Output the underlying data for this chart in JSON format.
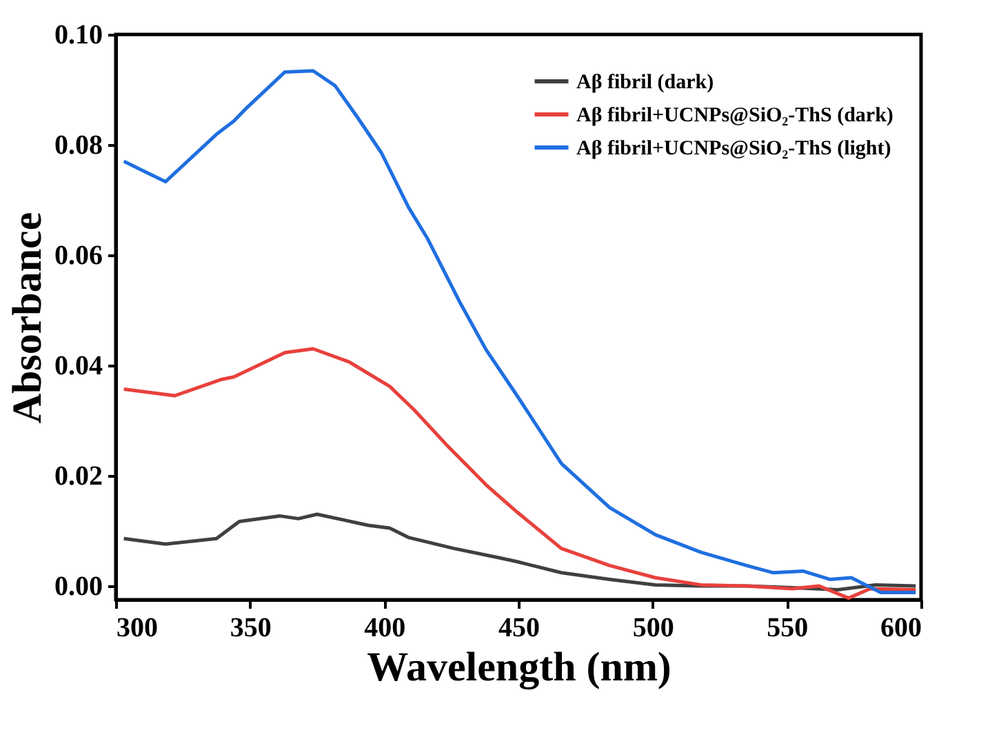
{
  "chart_data": {
    "type": "line",
    "xlabel": "Wavelength (nm)",
    "ylabel": "Absorbance",
    "xlim": [
      300,
      600
    ],
    "ylim": [
      -0.0025,
      0.1
    ],
    "xticks": [
      300,
      350,
      400,
      450,
      500,
      550,
      600
    ],
    "yticks": [
      {
        "value": 0,
        "label": "0.00"
      },
      {
        "value": 0.02,
        "label": "0.02"
      },
      {
        "value": 0.04,
        "label": "0.04"
      },
      {
        "value": 0.06,
        "label": "0.06"
      },
      {
        "value": 0.08,
        "label": "0.08"
      },
      {
        "value": 0.1,
        "label": "0.10"
      }
    ],
    "grid": false,
    "legend": "top right",
    "marker": "none",
    "line_style": "solid",
    "series": [
      {
        "name": "Aβ fibril (dark)",
        "color": "#404040",
        "x": [
          303,
          318.5,
          337.5,
          346,
          361,
          368,
          375,
          394,
          402,
          409,
          426,
          443,
          449.5,
          466,
          484,
          501,
          518,
          535,
          552,
          569,
          583,
          598
        ],
        "values": [
          0.0086,
          0.0076,
          0.0086,
          0.0117,
          0.0127,
          0.0122,
          0.013,
          0.011,
          0.0105,
          0.0088,
          0.0068,
          0.0051,
          0.0044,
          0.0024,
          0.0012,
          0.0002,
          0,
          0,
          -0.0003,
          -0.0007,
          0.0002,
          0
        ]
      },
      {
        "name": "Aβ fibril+UCNPs@SiO₂-ThS (dark)",
        "color": "#e8413c",
        "x": [
          303,
          322,
          339,
          344,
          363,
          373.5,
          387,
          402,
          411,
          423,
          438,
          449.5,
          466,
          484,
          501,
          518,
          535,
          552,
          562,
          573,
          581,
          598
        ],
        "values": [
          0.0357,
          0.0345,
          0.0374,
          0.0379,
          0.0423,
          0.043,
          0.0406,
          0.0362,
          0.032,
          0.0257,
          0.0183,
          0.0134,
          0.0068,
          0.0037,
          0.0015,
          0.0002,
          0,
          -0.0005,
          0,
          -0.0022,
          -0.0005,
          -0.0007
        ]
      },
      {
        "name": "Aβ fibril+UCNPs@SiO₂-ThS (light)",
        "color": "#1f6fe0",
        "x": [
          303,
          318.5,
          337.5,
          344,
          349,
          363,
          373.5,
          381.7,
          390,
          399,
          409,
          416,
          428,
          438,
          449.5,
          466,
          484,
          501,
          518,
          535,
          545,
          556,
          566,
          574,
          585,
          598
        ],
        "values": [
          0.077,
          0.0733,
          0.0819,
          0.0843,
          0.0868,
          0.0932,
          0.0934,
          0.0907,
          0.085,
          0.0785,
          0.0687,
          0.0631,
          0.0516,
          0.0428,
          0.0345,
          0.0222,
          0.0142,
          0.0093,
          0.0061,
          0.0037,
          0.0024,
          0.0027,
          0.0012,
          0.0015,
          -0.0012,
          -0.0012
        ]
      }
    ]
  }
}
